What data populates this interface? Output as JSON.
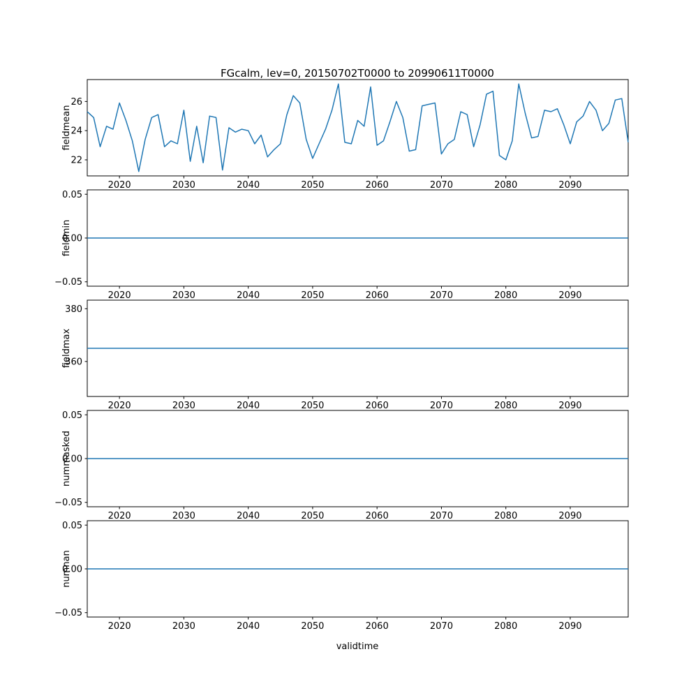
{
  "title": "FGcalm, lev=0, 20150702T0000 to 20990611T0000",
  "xlabel": "validtime",
  "line_color": "#1f77b4",
  "chart_data": {
    "type": "line",
    "x": {
      "start": 2015,
      "step": 1,
      "lim": [
        2015,
        2099
      ],
      "ticks": [
        2020,
        2030,
        2040,
        2050,
        2060,
        2070,
        2080,
        2090
      ],
      "tick_labels": [
        "2020",
        "2030",
        "2040",
        "2050",
        "2060",
        "2070",
        "2080",
        "2090"
      ]
    },
    "subplots": [
      {
        "ylabel": "fieldmean",
        "ylim": [
          20.9,
          27.5
        ],
        "yticks": [
          22,
          24,
          26
        ],
        "ytick_labels": [
          "22",
          "24",
          "26"
        ],
        "values": [
          25.3,
          24.9,
          22.9,
          24.3,
          24.1,
          25.9,
          24.7,
          23.3,
          21.2,
          23.4,
          24.9,
          25.1,
          22.9,
          23.3,
          23.1,
          25.4,
          21.9,
          24.3,
          21.8,
          25.0,
          24.9,
          21.3,
          24.2,
          23.9,
          24.1,
          24.0,
          23.1,
          23.7,
          22.2,
          22.7,
          23.1,
          25.1,
          26.4,
          25.9,
          23.4,
          22.1,
          23.1,
          24.1,
          25.4,
          27.2,
          23.2,
          23.1,
          24.7,
          24.3,
          27.0,
          23.0,
          23.3,
          24.6,
          26.0,
          24.9,
          22.6,
          22.7,
          25.7,
          25.8,
          25.9,
          22.4,
          23.1,
          23.4,
          25.3,
          25.1,
          22.9,
          24.4,
          26.5,
          26.7,
          22.3,
          22.0,
          23.3,
          27.2,
          25.2,
          23.5,
          23.6,
          25.4,
          25.3,
          25.5,
          24.4,
          23.1,
          24.6,
          25.0,
          26.0,
          25.4,
          24.0,
          24.5,
          26.1,
          26.2,
          23.2
        ]
      },
      {
        "ylabel": "fieldmin",
        "ylim": [
          -0.055,
          0.055
        ],
        "yticks": [
          -0.05,
          0,
          0.05
        ],
        "ytick_labels": [
          "−0.05",
          "0.00",
          "0.05"
        ],
        "constant": 0
      },
      {
        "ylabel": "fieldmax",
        "ylim": [
          346.75,
          383.25
        ],
        "yticks": [
          360,
          380
        ],
        "ytick_labels": [
          "360",
          "380"
        ],
        "constant": 365
      },
      {
        "ylabel": "nummasked",
        "ylim": [
          -0.055,
          0.055
        ],
        "yticks": [
          -0.05,
          0,
          0.05
        ],
        "ytick_labels": [
          "−0.05",
          "0.00",
          "0.05"
        ],
        "constant": 0
      },
      {
        "ylabel": "numnan",
        "ylim": [
          -0.055,
          0.055
        ],
        "yticks": [
          -0.05,
          0,
          0.05
        ],
        "ytick_labels": [
          "−0.05",
          "0.00",
          "0.05"
        ],
        "constant": 0
      }
    ]
  }
}
